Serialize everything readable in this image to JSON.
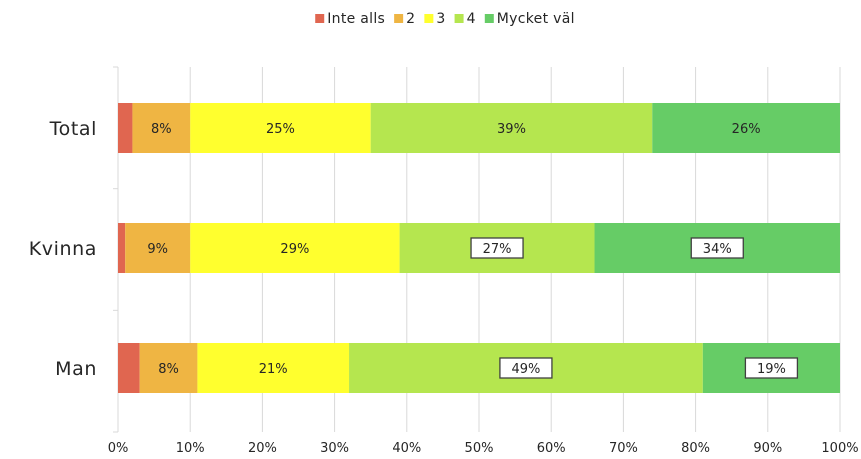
{
  "chart_data": {
    "type": "bar",
    "orientation": "horizontal",
    "stacked": true,
    "categories": [
      "Total",
      "Kvinna",
      "Man"
    ],
    "series": [
      {
        "name": "Inte alls",
        "color": "#e06650",
        "values": [
          2,
          1,
          3
        ],
        "labels": [
          "",
          "",
          ""
        ]
      },
      {
        "name": "2",
        "color": "#efb543",
        "values": [
          8,
          9,
          8
        ],
        "labels": [
          "8%",
          "9%",
          "8%"
        ]
      },
      {
        "name": "3",
        "color": "#ffff2e",
        "values": [
          25,
          29,
          21
        ],
        "labels": [
          "25%",
          "29%",
          "21%"
        ]
      },
      {
        "name": "4",
        "color": "#b5e64f",
        "values": [
          39,
          27,
          49
        ],
        "labels": [
          "39%",
          "27%",
          "49%"
        ]
      },
      {
        "name": "Mycket väl",
        "color": "#66cc66",
        "values": [
          26,
          34,
          19
        ],
        "labels": [
          "26%",
          "34%",
          "19%"
        ]
      }
    ],
    "highlighted_labels": [
      {
        "category": "Kvinna",
        "series": "4",
        "color": "#e06650"
      },
      {
        "category": "Kvinna",
        "series": "Mycket väl",
        "color": "#6bb3d6"
      },
      {
        "category": "Man",
        "series": "4",
        "color": "#6bb3d6"
      },
      {
        "category": "Man",
        "series": "Mycket väl",
        "color": "#e06650"
      }
    ],
    "xlim": [
      0,
      100
    ],
    "xticks": [
      "0%",
      "10%",
      "20%",
      "30%",
      "40%",
      "50%",
      "60%",
      "70%",
      "80%",
      "90%",
      "100%"
    ],
    "grid": true,
    "legend": "top-center",
    "title": "",
    "xlabel": "",
    "ylabel": ""
  }
}
